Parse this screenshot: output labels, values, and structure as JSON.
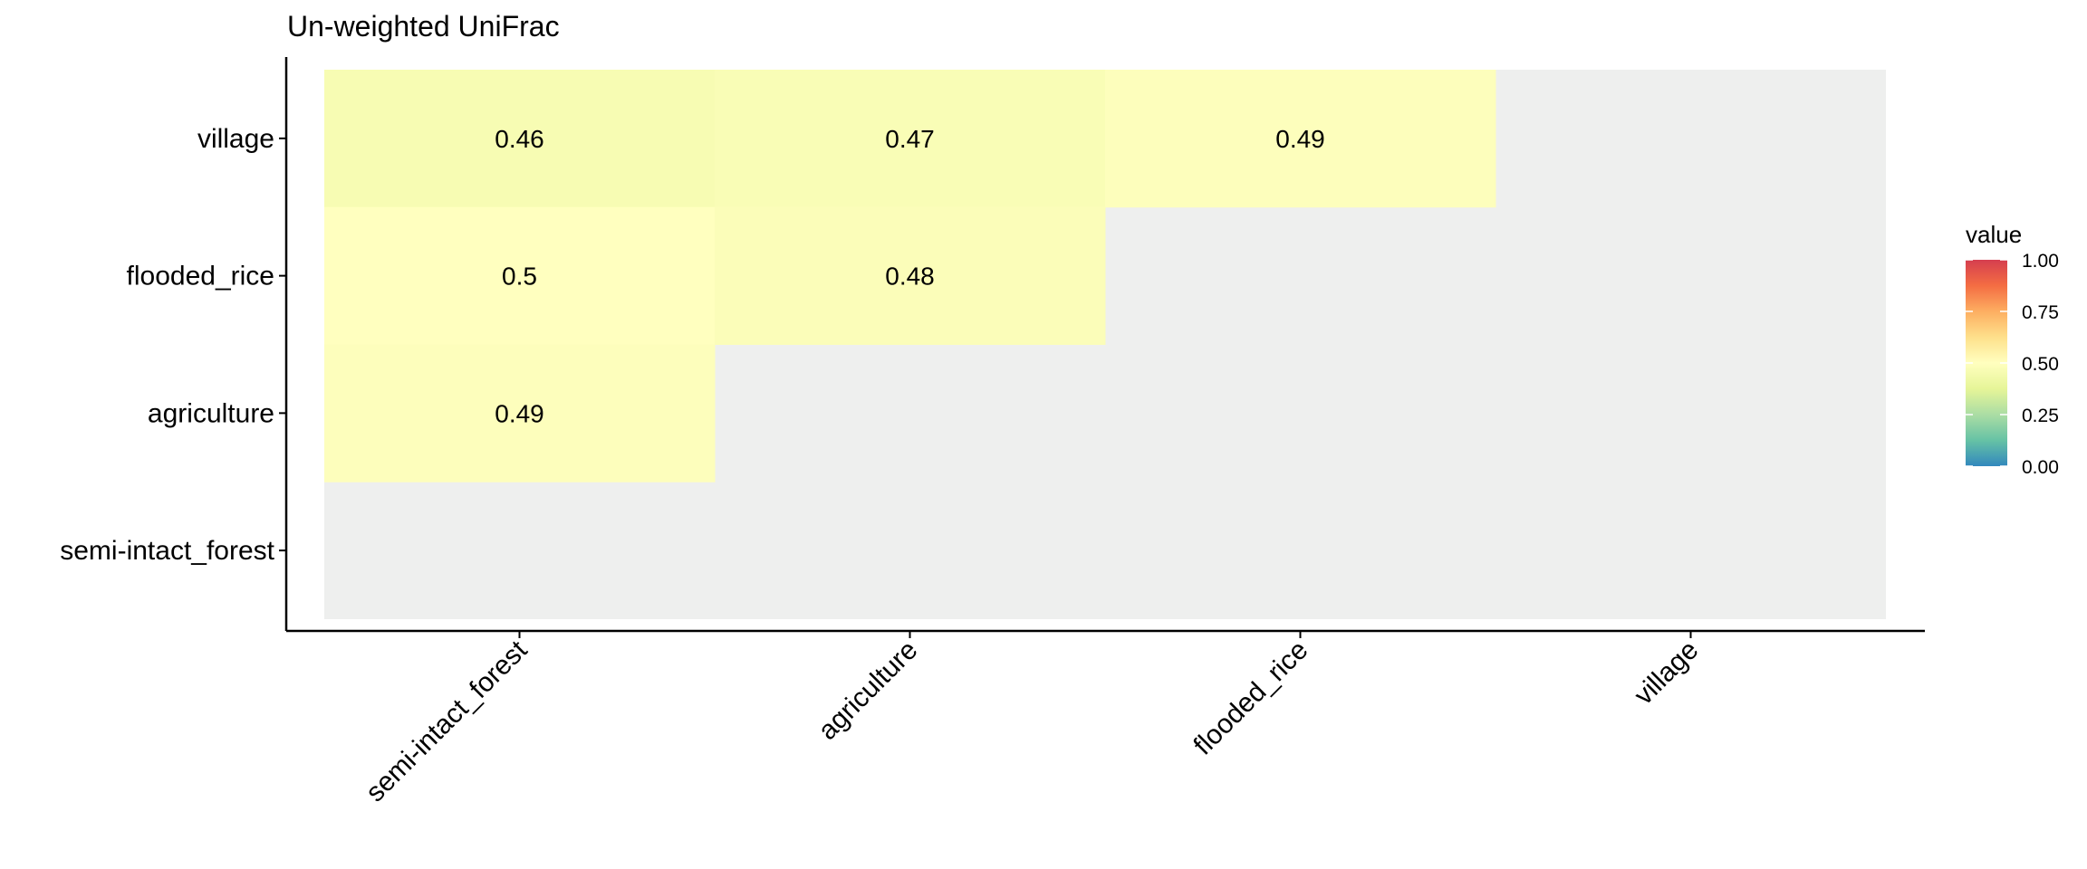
{
  "chart_data": {
    "type": "heatmap",
    "title": "Un-weighted UniFrac",
    "x_categories": [
      "semi-intact_forest",
      "agriculture",
      "flooded_rice",
      "village"
    ],
    "y_categories": [
      "village",
      "flooded_rice",
      "agriculture",
      "semi-intact_forest"
    ],
    "cells": [
      {
        "x": "semi-intact_forest",
        "y": "village",
        "value": 0.46,
        "label": "0.46"
      },
      {
        "x": "agriculture",
        "y": "village",
        "value": 0.47,
        "label": "0.47"
      },
      {
        "x": "flooded_rice",
        "y": "village",
        "value": 0.49,
        "label": "0.49"
      },
      {
        "x": "semi-intact_forest",
        "y": "flooded_rice",
        "value": 0.5,
        "label": "0.5"
      },
      {
        "x": "agriculture",
        "y": "flooded_rice",
        "value": 0.48,
        "label": "0.48"
      },
      {
        "x": "semi-intact_forest",
        "y": "agriculture",
        "value": 0.49,
        "label": "0.49"
      }
    ],
    "empty_cell_color": "#eeefee",
    "legend": {
      "title": "value",
      "ticks": [
        "1.00",
        "0.75",
        "0.50",
        "0.25",
        "0.00"
      ],
      "range": [
        0,
        1
      ],
      "palette": [
        "#3288bd",
        "#66c2a5",
        "#abdda4",
        "#e6f598",
        "#ffffbf",
        "#fee08b",
        "#fdae61",
        "#f46d43",
        "#d53e4f"
      ],
      "position": "right"
    }
  }
}
